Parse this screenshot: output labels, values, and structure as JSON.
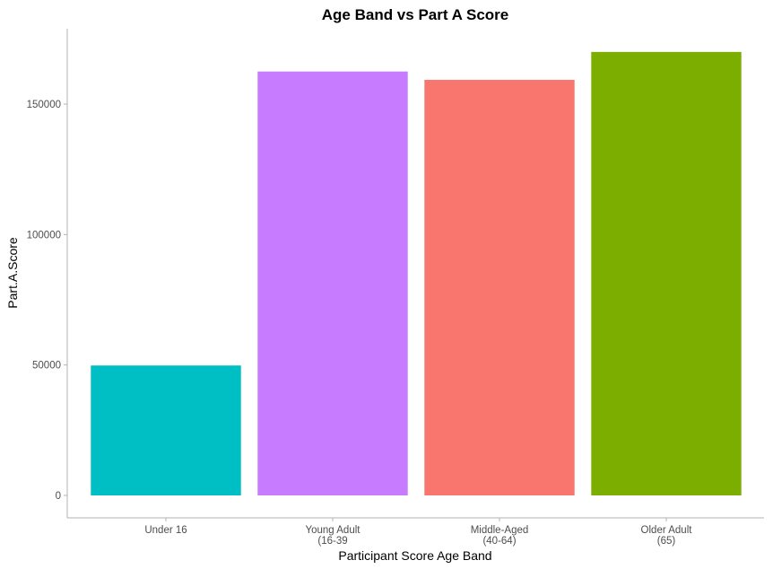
{
  "chart_data": {
    "type": "bar",
    "title": "Age Band vs Part A Score",
    "xlabel": "Participant Score Age Band",
    "ylabel": "Part.A.Score",
    "categories": [
      [
        "Under 16"
      ],
      [
        "Young Adult",
        "(16-39"
      ],
      [
        "Middle-Aged",
        "(40-64)"
      ],
      [
        "Older Adult",
        "(65)"
      ]
    ],
    "values": [
      49800,
      162500,
      159300,
      170000
    ],
    "colors": [
      "#00BFC4",
      "#C77CFF",
      "#F8766D",
      "#7CAE00"
    ],
    "ylim": [
      0,
      178000
    ],
    "yticks": [
      0,
      50000,
      100000,
      150000
    ],
    "ytick_labels": [
      "0",
      "50000",
      "100000",
      "150000"
    ],
    "grid": false,
    "legend": "none"
  }
}
